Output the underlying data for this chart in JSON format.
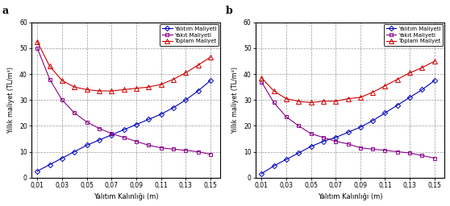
{
  "panel_a_label": "a",
  "panel_b_label": "b",
  "xlabel": "Yalıtım Kalınlığı (m)",
  "ylabel": "Yıllık maliyet (TL/m²)",
  "legend_entries": [
    "Yalıtım Maliyeti",
    "Yakıt Maliyeti",
    "Toplam Maliyet"
  ],
  "x": [
    0.01,
    0.02,
    0.03,
    0.04,
    0.05,
    0.06,
    0.07,
    0.08,
    0.09,
    0.1,
    0.11,
    0.12,
    0.13,
    0.14,
    0.15
  ],
  "panel_a": {
    "insulation": [
      2.5,
      5.0,
      7.5,
      10.0,
      12.5,
      14.5,
      16.5,
      18.5,
      20.5,
      22.5,
      24.5,
      27.0,
      30.0,
      33.5,
      37.5
    ],
    "fuel": [
      50.0,
      38.0,
      30.0,
      25.0,
      21.5,
      19.0,
      17.0,
      15.5,
      14.0,
      12.5,
      11.5,
      11.0,
      10.5,
      10.0,
      9.0
    ],
    "total": [
      52.5,
      43.0,
      37.5,
      35.0,
      34.0,
      33.5,
      33.5,
      34.0,
      34.5,
      35.0,
      36.0,
      38.0,
      40.5,
      43.5,
      46.5
    ]
  },
  "panel_b": {
    "insulation": [
      1.5,
      4.5,
      7.0,
      9.5,
      12.0,
      14.0,
      15.5,
      17.5,
      19.5,
      22.0,
      25.0,
      28.0,
      31.0,
      34.0,
      37.5
    ],
    "fuel": [
      37.0,
      29.0,
      23.5,
      20.0,
      17.0,
      15.5,
      14.0,
      13.0,
      11.5,
      11.0,
      10.5,
      10.0,
      9.5,
      8.5,
      7.5
    ],
    "total": [
      38.5,
      33.5,
      30.5,
      29.5,
      29.0,
      29.5,
      29.5,
      30.5,
      31.0,
      33.0,
      35.5,
      38.0,
      40.5,
      42.5,
      45.0
    ]
  },
  "colors": {
    "insulation": "#0000bb",
    "fuel": "#880088",
    "total": "#cc0000"
  },
  "ylim": [
    0,
    60
  ],
  "yticks": [
    0,
    10,
    20,
    30,
    40,
    50,
    60
  ],
  "xtick_labels": [
    "0,01",
    "0,03",
    "0,05",
    "0,07",
    "0,09",
    "0,11",
    "0,13",
    "0,15"
  ],
  "xtick_positions": [
    0.01,
    0.03,
    0.05,
    0.07,
    0.09,
    0.11,
    0.13,
    0.15
  ]
}
